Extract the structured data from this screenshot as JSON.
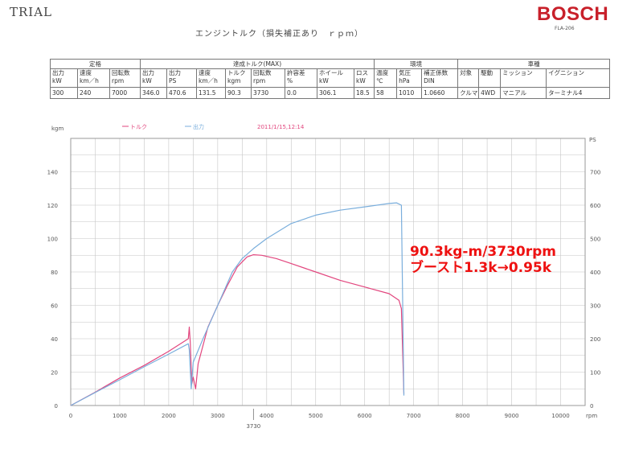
{
  "header": {
    "trial": "TRIAL",
    "subtitle": "エンジントルク（損失補正あり　ｒｐｍ）",
    "brand": "BOSCH",
    "model": "FLA-206"
  },
  "spec_table": {
    "groups": [
      "定格",
      "達成トルク(MAX)",
      "環境",
      "車種"
    ],
    "headers": [
      "出力\nkW",
      "速度\nkm／h",
      "回転数\nrpm",
      "出力\nkW",
      "出力\nPS",
      "速度\nkm／h",
      "トルク\nkgm",
      "回転数\nrpm",
      "許容差\n%",
      "ホイール\nkW",
      "ロス\nkW",
      "温度\n℃",
      "気圧\nhPa",
      "補正係数\nDIN",
      "対象",
      "駆動",
      "ミッション",
      "イグニション"
    ],
    "values": [
      "300",
      "240",
      "7000",
      "346.0",
      "470.6",
      "131.5",
      "90.3",
      "3730",
      "0.0",
      "306.1",
      "18.5",
      "58",
      "1010",
      "1.0660",
      "クルマ",
      "4WD",
      "マニアル",
      "ターミナル4"
    ]
  },
  "annotation": {
    "line1": "90.3kg-m/3730rpm",
    "line2": "ブースト1.3k→0.95k"
  },
  "chart_data": {
    "type": "line",
    "timestamp": "2011/1/15,12:14",
    "ylabel_left": "kgm",
    "ylabel_right": "PS",
    "xlabel": "rpm",
    "xlim": [
      0,
      10500
    ],
    "ylim_left": [
      0,
      160
    ],
    "ylim_right": [
      0,
      800
    ],
    "x_ticks": [
      0,
      1000,
      2000,
      3000,
      4000,
      5000,
      6000,
      7000,
      8000,
      9000,
      10000
    ],
    "y_ticks_left": [
      0,
      20,
      40,
      60,
      80,
      100,
      120,
      140
    ],
    "y_ticks_right": [
      0,
      100,
      200,
      300,
      400,
      500,
      600,
      700
    ],
    "marker_x": 3730,
    "marker_label": "3730",
    "grid": true,
    "legend_position": "top",
    "series": [
      {
        "name": "トルク",
        "axis": "left",
        "color": "#e2467e",
        "points": [
          [
            0,
            0
          ],
          [
            500,
            8
          ],
          [
            1000,
            16.5
          ],
          [
            1500,
            24
          ],
          [
            2000,
            32.5
          ],
          [
            2400,
            40
          ],
          [
            2420,
            47
          ],
          [
            2440,
            38
          ],
          [
            2470,
            13
          ],
          [
            2500,
            17
          ],
          [
            2550,
            10
          ],
          [
            2600,
            25
          ],
          [
            2800,
            47
          ],
          [
            3000,
            60
          ],
          [
            3200,
            72
          ],
          [
            3400,
            83
          ],
          [
            3600,
            89
          ],
          [
            3730,
            90.3
          ],
          [
            3900,
            90
          ],
          [
            4200,
            88
          ],
          [
            4500,
            85
          ],
          [
            5000,
            80
          ],
          [
            5500,
            75
          ],
          [
            6000,
            71
          ],
          [
            6500,
            67
          ],
          [
            6700,
            63
          ],
          [
            6750,
            58
          ],
          [
            6800,
            7
          ]
        ]
      },
      {
        "name": "出力",
        "axis": "right",
        "color": "#7aaedc",
        "points": [
          [
            0,
            0
          ],
          [
            500,
            39
          ],
          [
            1000,
            77
          ],
          [
            1500,
            116
          ],
          [
            2000,
            154
          ],
          [
            2400,
            185
          ],
          [
            2420,
            167
          ],
          [
            2460,
            50
          ],
          [
            2500,
            130
          ],
          [
            2700,
            200
          ],
          [
            3000,
            300
          ],
          [
            3300,
            400
          ],
          [
            3500,
            440
          ],
          [
            3730,
            470
          ],
          [
            4000,
            500
          ],
          [
            4500,
            545
          ],
          [
            5000,
            570
          ],
          [
            5500,
            585
          ],
          [
            6000,
            595
          ],
          [
            6500,
            605
          ],
          [
            6650,
            607
          ],
          [
            6750,
            600
          ],
          [
            6800,
            30
          ]
        ]
      }
    ]
  }
}
